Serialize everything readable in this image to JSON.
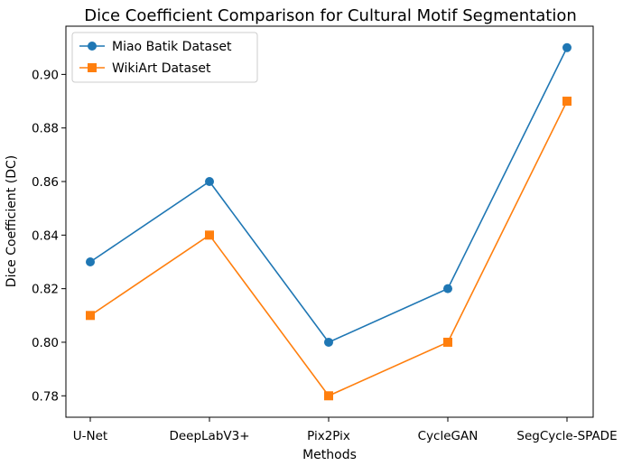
{
  "chart_data": {
    "type": "line",
    "title": "Dice Coefficient Comparison for Cultural Motif Segmentation",
    "xlabel": "Methods",
    "ylabel": "Dice Coefficient (DC)",
    "categories": [
      "U-Net",
      "DeepLabV3+",
      "Pix2Pix",
      "CycleGAN",
      "SegCycle-SPADE"
    ],
    "ylim": [
      0.772,
      0.918
    ],
    "yticks": [
      0.78,
      0.8,
      0.82,
      0.84,
      0.86,
      0.88,
      0.9
    ],
    "ytick_labels": [
      "0.78",
      "0.80",
      "0.82",
      "0.84",
      "0.86",
      "0.88",
      "0.90"
    ],
    "grid": false,
    "legend_position": "top-left",
    "series": [
      {
        "name": "Miao Batik Dataset",
        "values": [
          0.83,
          0.86,
          0.8,
          0.82,
          0.91
        ],
        "color": "#1f77b4",
        "marker": "circle"
      },
      {
        "name": "WikiArt Dataset",
        "values": [
          0.81,
          0.84,
          0.78,
          0.8,
          0.89
        ],
        "color": "#ff7f0e",
        "marker": "square"
      }
    ]
  }
}
